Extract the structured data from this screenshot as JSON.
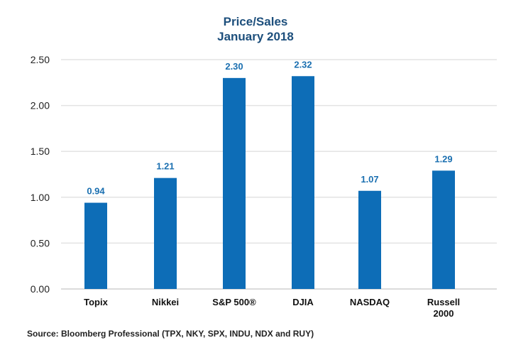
{
  "chart_data": {
    "type": "bar",
    "title": "Price/Sales",
    "subtitle": "January 2018",
    "categories": [
      "Topix",
      "Nikkei",
      "S&P 500®",
      "DJIA",
      "NASDAQ",
      "Russell 2000"
    ],
    "category_lines": [
      [
        "Topix"
      ],
      [
        "Nikkei"
      ],
      [
        "S&P 500®"
      ],
      [
        "DJIA"
      ],
      [
        "NASDAQ"
      ],
      [
        "Russell",
        "2000"
      ]
    ],
    "values": [
      0.94,
      1.21,
      2.3,
      2.32,
      1.07,
      1.29
    ],
    "data_labels": [
      "0.94",
      "1.21",
      "2.30",
      "2.32",
      "1.07",
      "1.29"
    ],
    "xlabel": "",
    "ylabel": "",
    "ylim": [
      0,
      2.5
    ],
    "yticks": [
      0,
      0.5,
      1.0,
      1.5,
      2.0,
      2.5
    ],
    "ytick_labels": [
      "0.00",
      "0.50",
      "1.00",
      "1.50",
      "2.00",
      "2.50"
    ],
    "grid": true,
    "legend": "none",
    "bar_color": "#0d6db7",
    "label_color": "#1a6fb0",
    "source": "Source: Bloomberg Professional (TPX, NKY, SPX, INDU, NDX and RUY)"
  }
}
